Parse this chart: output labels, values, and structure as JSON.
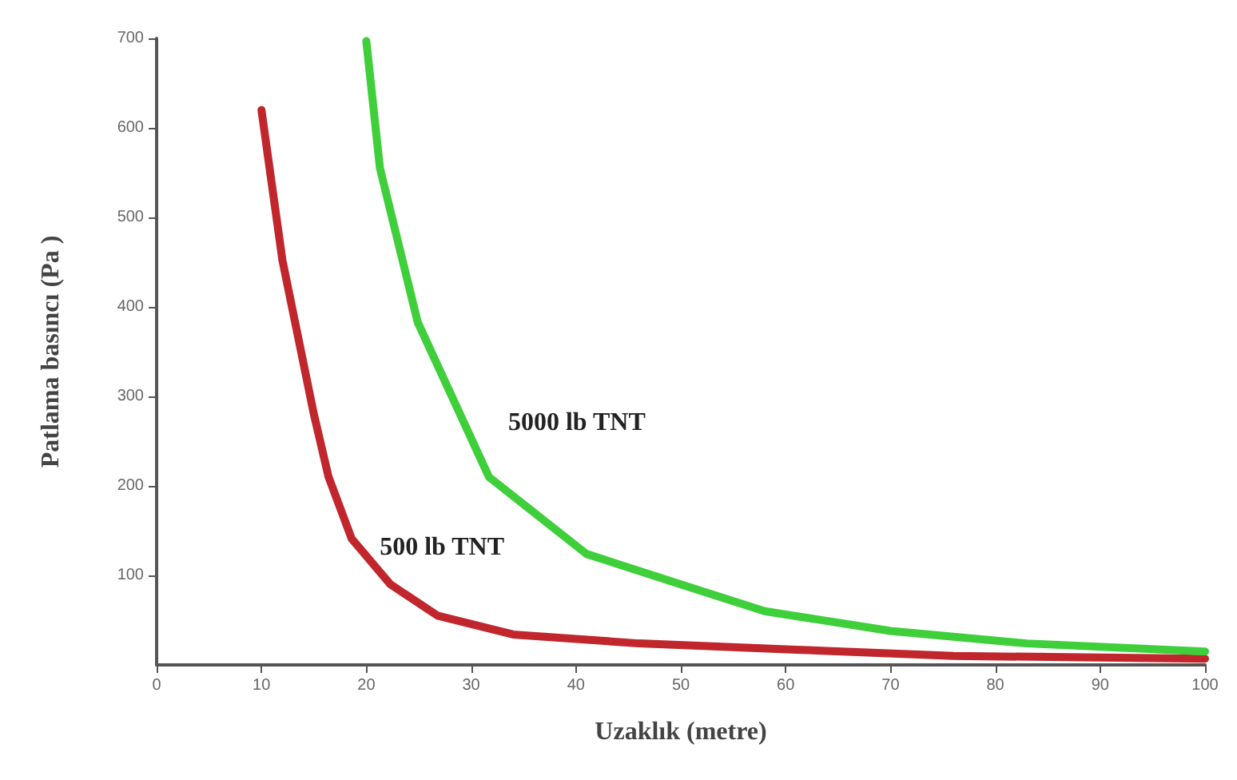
{
  "chart_data": {
    "type": "line",
    "xlabel": "Uzaklık (metre)",
    "ylabel": "Patlama basıncı (Pa )",
    "xlim": [
      0,
      100
    ],
    "xticks": [
      0,
      10,
      20,
      30,
      40,
      50,
      60,
      70,
      80,
      90,
      100
    ],
    "ylim": [
      0,
      700
    ],
    "yticks": [
      100,
      200,
      300,
      400,
      500,
      600,
      700
    ],
    "grid": false,
    "legend": false,
    "marker": "none",
    "line_style": "solid",
    "series": [
      {
        "name": "500 lb TNT",
        "color": "#c0262b",
        "x": [
          10,
          12,
          15,
          16.4,
          18.6,
          22.3,
          26.8,
          34,
          46,
          61,
          76,
          100
        ],
        "values": [
          620,
          452,
          280,
          210,
          141,
          90,
          55,
          34,
          24,
          17,
          10,
          7
        ]
      },
      {
        "name": "5000 lb TNT",
        "color": "#3ecf3a",
        "x": [
          20,
          21.3,
          24.9,
          31.7,
          41,
          50,
          58,
          70,
          83,
          100
        ],
        "values": [
          697,
          555,
          383,
          210,
          124,
          90,
          60,
          38,
          24,
          15
        ]
      }
    ]
  }
}
